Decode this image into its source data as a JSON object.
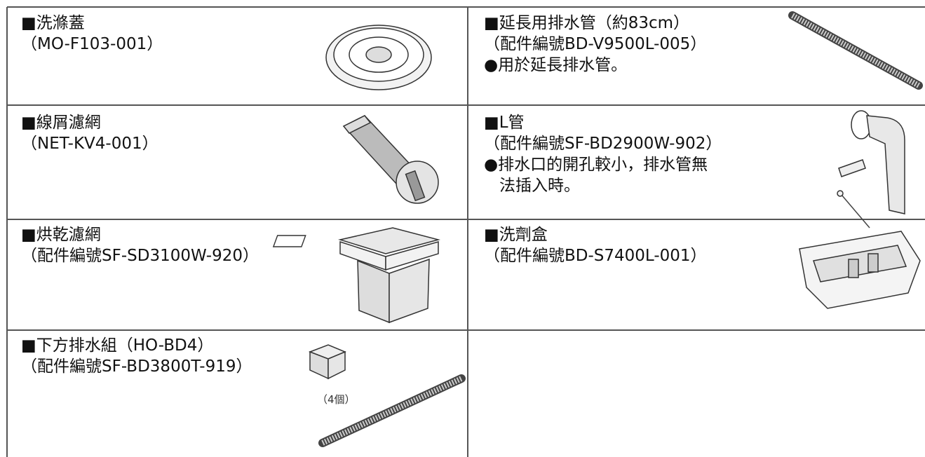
{
  "table": {
    "left": [
      {
        "lines": [
          "■洗滌蓋",
          "（MO-F103-001）"
        ]
      },
      {
        "lines": [
          "■線屑濾網",
          "（NET-KV4-001）"
        ]
      },
      {
        "lines": [
          "■烘乾濾網",
          "（配件編號SF-SD3100W-920）"
        ]
      },
      {
        "lines": [
          "■下方排水組（HO-BD4）",
          "（配件編號SF-BD3800T-919）"
        ],
        "note": "（4個）"
      }
    ],
    "right": [
      {
        "lines": [
          "■延長用排水管（約83cm）",
          "（配件編號BD-V9500L-005）",
          "●用於延長排水管。"
        ]
      },
      {
        "lines": [
          "■L管",
          "（配件編號SF-BD2900W-902）",
          "●排水口的開孔較小，排水管無",
          "法插入時。"
        ]
      },
      {
        "lines": [
          "■洗劑盒",
          "（配件編號BD-S7400L-001）"
        ]
      }
    ]
  }
}
